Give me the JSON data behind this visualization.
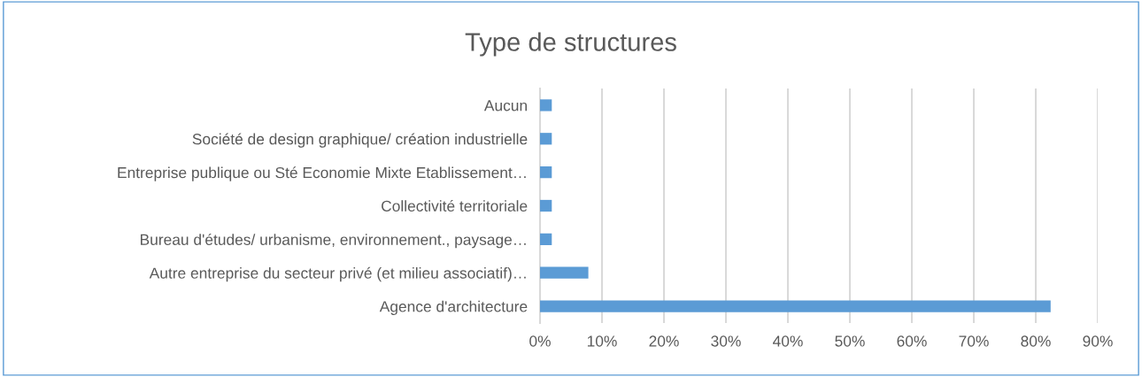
{
  "chart_data": {
    "type": "bar",
    "orientation": "horizontal",
    "title": "Type de structures",
    "categories": [
      "Aucun",
      "Société de design graphique/ création industrielle",
      "Entreprise publique ou Sté Economie Mixte Etablissement…",
      "Collectivité territoriale",
      "Bureau d'études/ urbanisme, environnement., paysage…",
      "Autre entreprise du secteur privé (et milieu associatif)…",
      "Agence d'architecture"
    ],
    "values": [
      1.9,
      1.9,
      1.9,
      1.9,
      1.9,
      7.8,
      82.4
    ],
    "color": "#5b9bd5",
    "xlim": [
      0,
      90
    ],
    "xticks": [
      {
        "value": 0,
        "label": "0%"
      },
      {
        "value": 10,
        "label": "10%"
      },
      {
        "value": 20,
        "label": "20%"
      },
      {
        "value": 30,
        "label": "30%"
      },
      {
        "value": 40,
        "label": "40%"
      },
      {
        "value": 50,
        "label": "50%"
      },
      {
        "value": 60,
        "label": "60%"
      },
      {
        "value": 70,
        "label": "70%"
      },
      {
        "value": 80,
        "label": "80%"
      },
      {
        "value": 90,
        "label": "90%"
      }
    ],
    "grid": "x"
  }
}
